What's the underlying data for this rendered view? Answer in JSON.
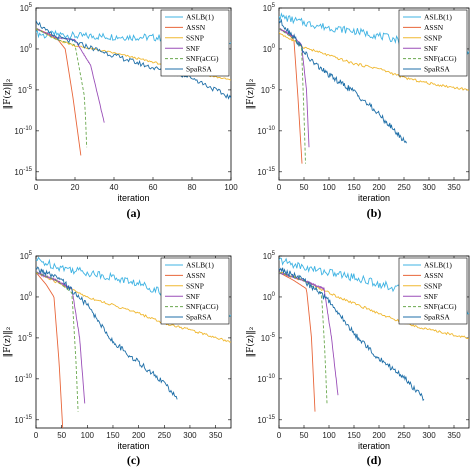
{
  "figure": {
    "panel_labels": [
      "(a)",
      "(b)",
      "(c)",
      "(d)"
    ]
  },
  "chart_data": [
    {
      "type": "line",
      "panel": "(a)",
      "xlabel": "iteration",
      "ylabel": "‖F(z)‖₂",
      "yscale": "log",
      "xlim": [
        0,
        100
      ],
      "ylim": [
        1e-16,
        100000.0
      ],
      "xticks": [
        0,
        20,
        40,
        60,
        80,
        100
      ],
      "yticks_exp": [
        5,
        0,
        -5,
        -10,
        -15
      ],
      "legend": "top-right",
      "series": [
        {
          "name": "ASLB(1)",
          "color": "#3fb3e3",
          "dash": "",
          "noise": 0.45,
          "points": [
            [
              0,
              2.0
            ],
            [
              5,
              1.6
            ],
            [
              10,
              1.8
            ],
            [
              20,
              1.6
            ],
            [
              40,
              1.5
            ],
            [
              60,
              1.4
            ],
            [
              80,
              1.2
            ],
            [
              100,
              0.8
            ]
          ]
        },
        {
          "name": "ASSN",
          "color": "#e8663a",
          "dash": "",
          "noise": 0,
          "points": [
            [
              0,
              2.5
            ],
            [
              10,
              1.5
            ],
            [
              15,
              0
            ],
            [
              19,
              -6
            ],
            [
              23,
              -13
            ]
          ]
        },
        {
          "name": "SSNP",
          "color": "#f0b830",
          "dash": "",
          "noise": 0.12,
          "points": [
            [
              0,
              2.5
            ],
            [
              10,
              1.2
            ],
            [
              20,
              0.4
            ],
            [
              40,
              -0.5
            ],
            [
              60,
              -1.6
            ],
            [
              80,
              -2.8
            ],
            [
              100,
              -3.8
            ]
          ]
        },
        {
          "name": "SNF",
          "color": "#9a4fb8",
          "dash": "",
          "noise": 0.06,
          "points": [
            [
              0,
              2.5
            ],
            [
              10,
              1.4
            ],
            [
              20,
              1.1
            ],
            [
              28,
              -2
            ],
            [
              35,
              -9
            ]
          ]
        },
        {
          "name": "SNF(aCG)",
          "color": "#6aa84f",
          "dash": "3,2",
          "noise": 0,
          "points": [
            [
              0,
              2.5
            ],
            [
              10,
              1.2
            ],
            [
              20,
              0.5
            ],
            [
              25,
              -6
            ],
            [
              26,
              -12
            ]
          ]
        },
        {
          "name": "SpaRSA",
          "color": "#1f6fa8",
          "dash": "",
          "noise": 0.3,
          "points": [
            [
              0,
              3.5
            ],
            [
              5,
              2.2
            ],
            [
              10,
              1.5
            ],
            [
              20,
              0.8
            ],
            [
              40,
              -0.8
            ],
            [
              60,
              -2.3
            ],
            [
              80,
              -3.5
            ],
            [
              100,
              -6.0
            ]
          ]
        }
      ]
    },
    {
      "type": "line",
      "panel": "(b)",
      "xlabel": "iteration",
      "ylabel": "‖F(z)‖₂",
      "yscale": "log",
      "xlim": [
        0,
        380
      ],
      "ylim": [
        1e-16,
        100000.0
      ],
      "xticks": [
        0,
        50,
        100,
        150,
        200,
        250,
        300,
        350
      ],
      "yticks_exp": [
        5,
        0,
        -5,
        -10,
        -15
      ],
      "legend": "top-right",
      "series": [
        {
          "name": "ASLB(1)",
          "color": "#3fb3e3",
          "dash": "",
          "noise": 0.45,
          "points": [
            [
              0,
              4.0
            ],
            [
              50,
              3.2
            ],
            [
              100,
              2.6
            ],
            [
              150,
              2.2
            ],
            [
              200,
              1.6
            ],
            [
              250,
              1.0
            ],
            [
              300,
              0.6
            ],
            [
              380,
              -0.3
            ]
          ]
        },
        {
          "name": "ASSN",
          "color": "#e8663a",
          "dash": "",
          "noise": 0,
          "points": [
            [
              0,
              2.5
            ],
            [
              20,
              1.8
            ],
            [
              30,
              1.0
            ],
            [
              38,
              -6
            ],
            [
              46,
              -14
            ]
          ]
        },
        {
          "name": "SSNP",
          "color": "#f0b830",
          "dash": "",
          "noise": 0.15,
          "points": [
            [
              0,
              2.0
            ],
            [
              50,
              0.2
            ],
            [
              100,
              -0.8
            ],
            [
              150,
              -1.8
            ],
            [
              200,
              -2.4
            ],
            [
              250,
              -3.5
            ],
            [
              300,
              -4.2
            ],
            [
              380,
              -5.0
            ]
          ]
        },
        {
          "name": "SNF",
          "color": "#9a4fb8",
          "dash": "",
          "noise": 0.06,
          "points": [
            [
              0,
              2.5
            ],
            [
              30,
              1.5
            ],
            [
              45,
              0.5
            ],
            [
              55,
              -5
            ],
            [
              60,
              -12
            ]
          ]
        },
        {
          "name": "SNF(aCG)",
          "color": "#6aa84f",
          "dash": "3,2",
          "noise": 0,
          "points": [
            [
              0,
              2.5
            ],
            [
              30,
              1.2
            ],
            [
              45,
              0.3
            ],
            [
              50,
              -8
            ],
            [
              53,
              -14
            ]
          ]
        },
        {
          "name": "SpaRSA",
          "color": "#1f6fa8",
          "dash": "",
          "noise": 0.35,
          "points": [
            [
              0,
              3.5
            ],
            [
              30,
              1.5
            ],
            [
              60,
              -1.2
            ],
            [
              100,
              -3.2
            ],
            [
              150,
              -5.2
            ],
            [
              200,
              -8.0
            ],
            [
              255,
              -11.5
            ]
          ]
        }
      ]
    },
    {
      "type": "line",
      "panel": "(c)",
      "xlabel": "iteration",
      "ylabel": "‖F(z)‖₂",
      "yscale": "log",
      "xlim": [
        0,
        380
      ],
      "ylim": [
        1e-16,
        100000.0
      ],
      "xticks": [
        0,
        50,
        100,
        150,
        200,
        250,
        300,
        350
      ],
      "yticks_exp": [
        5,
        0,
        -5,
        -10,
        -15
      ],
      "legend": "top-right",
      "series": [
        {
          "name": "ASLB(1)",
          "color": "#3fb3e3",
          "dash": "",
          "noise": 0.5,
          "points": [
            [
              0,
              4.5
            ],
            [
              50,
              3.6
            ],
            [
              100,
              3.0
            ],
            [
              150,
              2.4
            ],
            [
              200,
              1.6
            ],
            [
              250,
              0.6
            ],
            [
              300,
              -0.8
            ],
            [
              380,
              -2.2
            ]
          ]
        },
        {
          "name": "ASSN",
          "color": "#e8663a",
          "dash": "",
          "noise": 0,
          "points": [
            [
              0,
              3.0
            ],
            [
              20,
              1.5
            ],
            [
              35,
              0
            ],
            [
              45,
              -8
            ],
            [
              52,
              -16
            ]
          ]
        },
        {
          "name": "SSNP",
          "color": "#f0b830",
          "dash": "",
          "noise": 0.15,
          "points": [
            [
              0,
              3.0
            ],
            [
              50,
              1.5
            ],
            [
              100,
              0.0
            ],
            [
              150,
              -1.0
            ],
            [
              200,
              -2.0
            ],
            [
              250,
              -3.2
            ],
            [
              300,
              -4.0
            ],
            [
              380,
              -5.5
            ]
          ]
        },
        {
          "name": "SNF",
          "color": "#9a4fb8",
          "dash": "",
          "noise": 0.1,
          "points": [
            [
              0,
              3.0
            ],
            [
              40,
              2.0
            ],
            [
              70,
              1.0
            ],
            [
              85,
              -5
            ],
            [
              95,
              -13
            ]
          ]
        },
        {
          "name": "SNF(aCG)",
          "color": "#6aa84f",
          "dash": "3,2",
          "noise": 0,
          "points": [
            [
              0,
              3.0
            ],
            [
              40,
              2.0
            ],
            [
              70,
              0.5
            ],
            [
              78,
              -8
            ],
            [
              82,
              -14
            ]
          ]
        },
        {
          "name": "SpaRSA",
          "color": "#1f6fa8",
          "dash": "",
          "noise": 0.35,
          "points": [
            [
              0,
              3.5
            ],
            [
              50,
              2.0
            ],
            [
              100,
              -1.0
            ],
            [
              150,
              -5.5
            ],
            [
              200,
              -8.0
            ],
            [
              250,
              -10.5
            ],
            [
              275,
              -12.5
            ]
          ]
        }
      ]
    },
    {
      "type": "line",
      "panel": "(d)",
      "xlabel": "iteration",
      "ylabel": "‖F(z)‖₂",
      "yscale": "log",
      "xlim": [
        0,
        380
      ],
      "ylim": [
        1e-16,
        100000.0
      ],
      "xticks": [
        0,
        50,
        100,
        150,
        200,
        250,
        300,
        350
      ],
      "yticks_exp": [
        5,
        0,
        -5,
        -10,
        -15
      ],
      "legend": "top-right",
      "series": [
        {
          "name": "ASLB(1)",
          "color": "#3fb3e3",
          "dash": "",
          "noise": 0.5,
          "points": [
            [
              0,
              4.5
            ],
            [
              50,
              3.6
            ],
            [
              100,
              3.0
            ],
            [
              150,
              2.4
            ],
            [
              200,
              1.6
            ],
            [
              250,
              0.8
            ],
            [
              300,
              -0.6
            ],
            [
              380,
              -2.0
            ]
          ]
        },
        {
          "name": "ASSN",
          "color": "#e8663a",
          "dash": "",
          "noise": 0,
          "points": [
            [
              0,
              3.0
            ],
            [
              30,
              2.0
            ],
            [
              55,
              1.0
            ],
            [
              65,
              -5
            ],
            [
              72,
              -14
            ]
          ]
        },
        {
          "name": "SSNP",
          "color": "#f0b830",
          "dash": "",
          "noise": 0.15,
          "points": [
            [
              0,
              3.0
            ],
            [
              50,
              2.0
            ],
            [
              100,
              0.5
            ],
            [
              150,
              -0.8
            ],
            [
              200,
              -2.0
            ],
            [
              250,
              -3.2
            ],
            [
              300,
              -4.0
            ],
            [
              380,
              -5.0
            ]
          ]
        },
        {
          "name": "SNF",
          "color": "#9a4fb8",
          "dash": "",
          "noise": 0.1,
          "points": [
            [
              0,
              3.0
            ],
            [
              50,
              2.0
            ],
            [
              90,
              1.0
            ],
            [
              105,
              -5
            ],
            [
              118,
              -12
            ]
          ]
        },
        {
          "name": "SNF(aCG)",
          "color": "#6aa84f",
          "dash": "3,2",
          "noise": 0,
          "points": [
            [
              0,
              3.0
            ],
            [
              50,
              2.0
            ],
            [
              85,
              0.5
            ],
            [
              92,
              -7
            ],
            [
              96,
              -13
            ]
          ]
        },
        {
          "name": "SpaRSA",
          "color": "#1f6fa8",
          "dash": "",
          "noise": 0.35,
          "points": [
            [
              0,
              3.5
            ],
            [
              50,
              2.0
            ],
            [
              100,
              -0.5
            ],
            [
              150,
              -4.5
            ],
            [
              200,
              -7.5
            ],
            [
              250,
              -9.8
            ],
            [
              290,
              -12.5
            ]
          ]
        }
      ]
    }
  ]
}
